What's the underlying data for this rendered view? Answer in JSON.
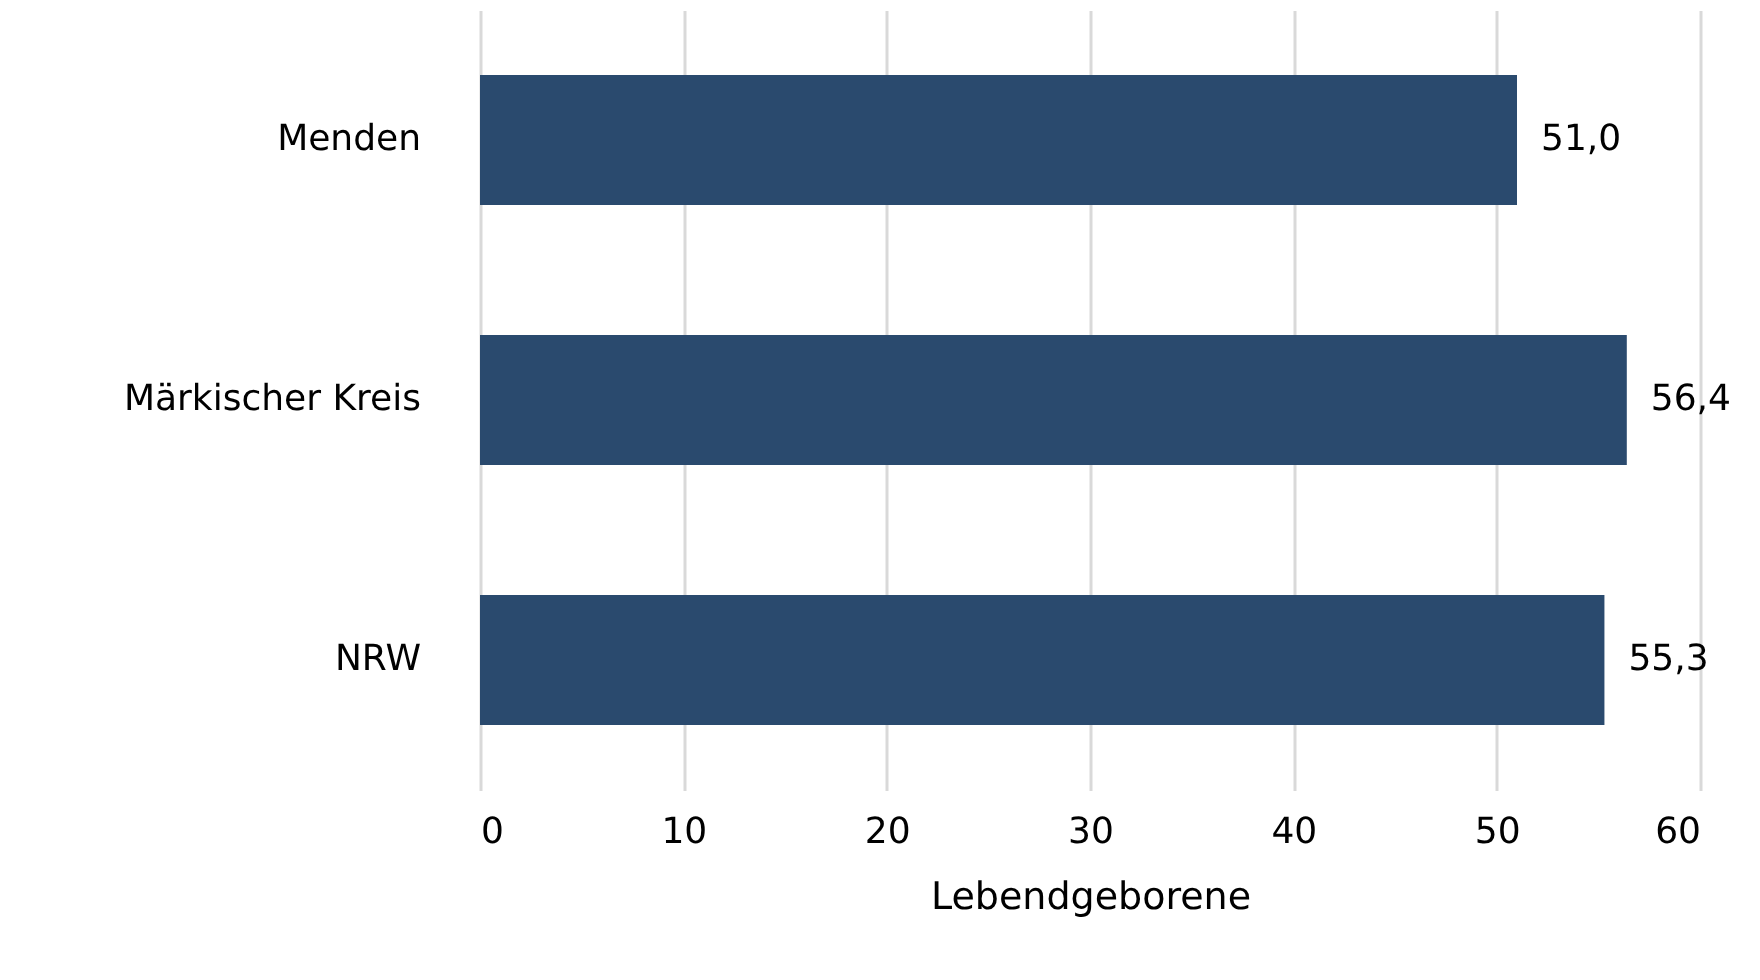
{
  "chart_data": {
    "type": "bar",
    "orientation": "horizontal",
    "categories": [
      "Menden",
      "Märkischer Kreis",
      "NRW"
    ],
    "values": [
      51.0,
      56.4,
      55.3
    ],
    "value_labels": [
      "51,0",
      "56,4",
      "55,3"
    ],
    "color": "#2a4a6e",
    "xlabel": "Lebendgeborene",
    "xlim": [
      0,
      60
    ],
    "xticks": [
      0,
      10,
      20,
      30,
      40,
      50,
      60
    ],
    "grid": "x"
  }
}
